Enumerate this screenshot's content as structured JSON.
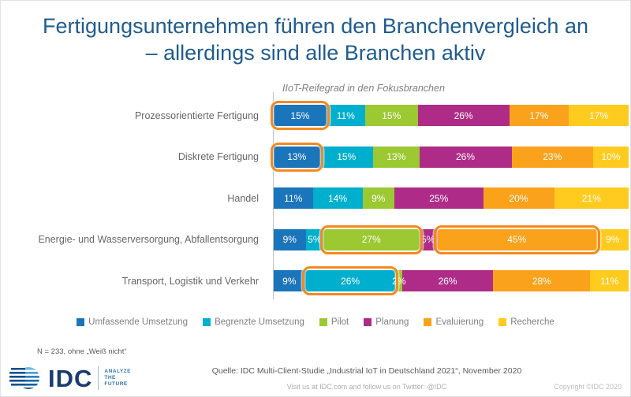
{
  "title": {
    "line1": "Fertigungsunternehmen führen den Branchenvergleich an",
    "line2": "– allerdings sind alle Branchen aktiv"
  },
  "chart_data": {
    "type": "bar",
    "orientation": "horizontal",
    "stacked": true,
    "subtitle": "IIoT-Reifegrad in den Fokusbranchen",
    "value_suffix": "%",
    "xlim": [
      0,
      100
    ],
    "legend_position": "bottom",
    "categories": [
      "Prozessorientierte Fertigung",
      "Diskrete Fertigung",
      "Handel",
      "Energie- und Wasserversorgung, Abfallentsorgung",
      "Transport, Logistik und Verkehr"
    ],
    "series": [
      {
        "name": "Umfassende Umsetzung",
        "color": "#1b75bb",
        "values": [
          15,
          13,
          11,
          9,
          9
        ]
      },
      {
        "name": "Begrenzte Umsetzung",
        "color": "#00afcd",
        "values": [
          11,
          15,
          14,
          5,
          26
        ]
      },
      {
        "name": "Pilot",
        "color": "#9cc832",
        "values": [
          15,
          13,
          9,
          27,
          2
        ]
      },
      {
        "name": "Planung",
        "color": "#ae2c87",
        "values": [
          26,
          26,
          25,
          5,
          26
        ]
      },
      {
        "name": "Evaluierung",
        "color": "#faa21b",
        "values": [
          17,
          23,
          20,
          45,
          28
        ]
      },
      {
        "name": "Recherche",
        "color": "#ffcb1f",
        "values": [
          17,
          10,
          21,
          9,
          11
        ]
      }
    ],
    "highlights": [
      {
        "row": 0,
        "seg": 0
      },
      {
        "row": 1,
        "seg": 0
      },
      {
        "row": 3,
        "seg": 2
      },
      {
        "row": 3,
        "seg": 4
      },
      {
        "row": 4,
        "seg": 1
      }
    ]
  },
  "footnote": "N = 233, ohne „Weiß nicht“",
  "footer": {
    "source": "Quelle: IDC Multi-Client-Studie „Industrial IoT in Deutschland 2021“, November 2020",
    "visit": "Visit us at IDC.com and follow us on Twitter: @IDC",
    "copyright": "Copyright ©IDC 2020",
    "logo_text": "IDC",
    "tagline": [
      "ANALYZE",
      "THE",
      "FUTURE"
    ]
  },
  "colors": {
    "title": "#1f5c8f",
    "highlight_ring": "#f5891f",
    "axis_line": "#c3c3c3"
  }
}
